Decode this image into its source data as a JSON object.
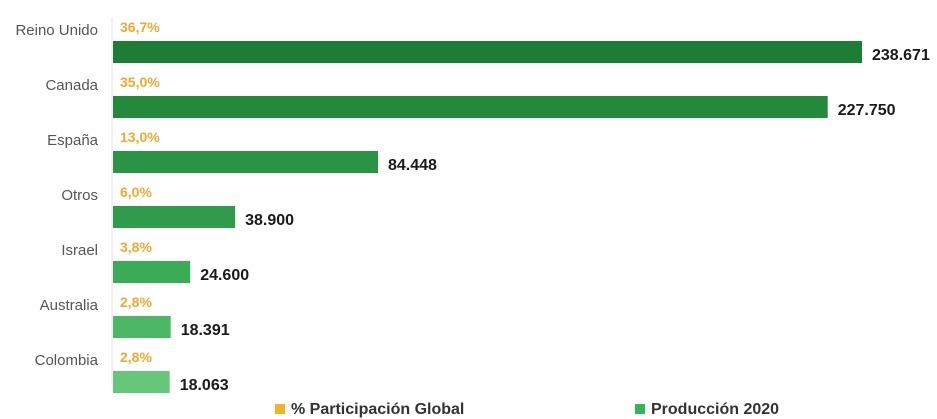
{
  "chart_data": {
    "type": "bar",
    "orientation": "horizontal",
    "categories": [
      "Reino Unido",
      "Canada",
      "España",
      "Otros",
      "Israel",
      "Australia",
      "Colombia"
    ],
    "series": [
      {
        "name": "Producción 2020",
        "values": [
          238671,
          227750,
          84448,
          38900,
          24600,
          18391,
          18063
        ],
        "labels": [
          "238.671",
          "227.750",
          "84.448",
          "38.900",
          "24.600",
          "18.391",
          "18.063"
        ]
      },
      {
        "name": "% Participación Global",
        "values": [
          36.7,
          35.0,
          13.0,
          6.0,
          3.8,
          2.8,
          2.8
        ],
        "labels": [
          "36,7%",
          "35,0%",
          "13,0%",
          "6,0%",
          "3,8%",
          "2,8%",
          "2,8%"
        ]
      }
    ],
    "bar_colors": [
      "#1e7d34",
      "#238a3c",
      "#2a9444",
      "#309c4b",
      "#3aab56",
      "#4db766",
      "#66c77b"
    ],
    "legend_colors": {
      "pct": "#f0b429",
      "production": "#2eb85c"
    },
    "legend_position": "bottom",
    "grid": false
  }
}
